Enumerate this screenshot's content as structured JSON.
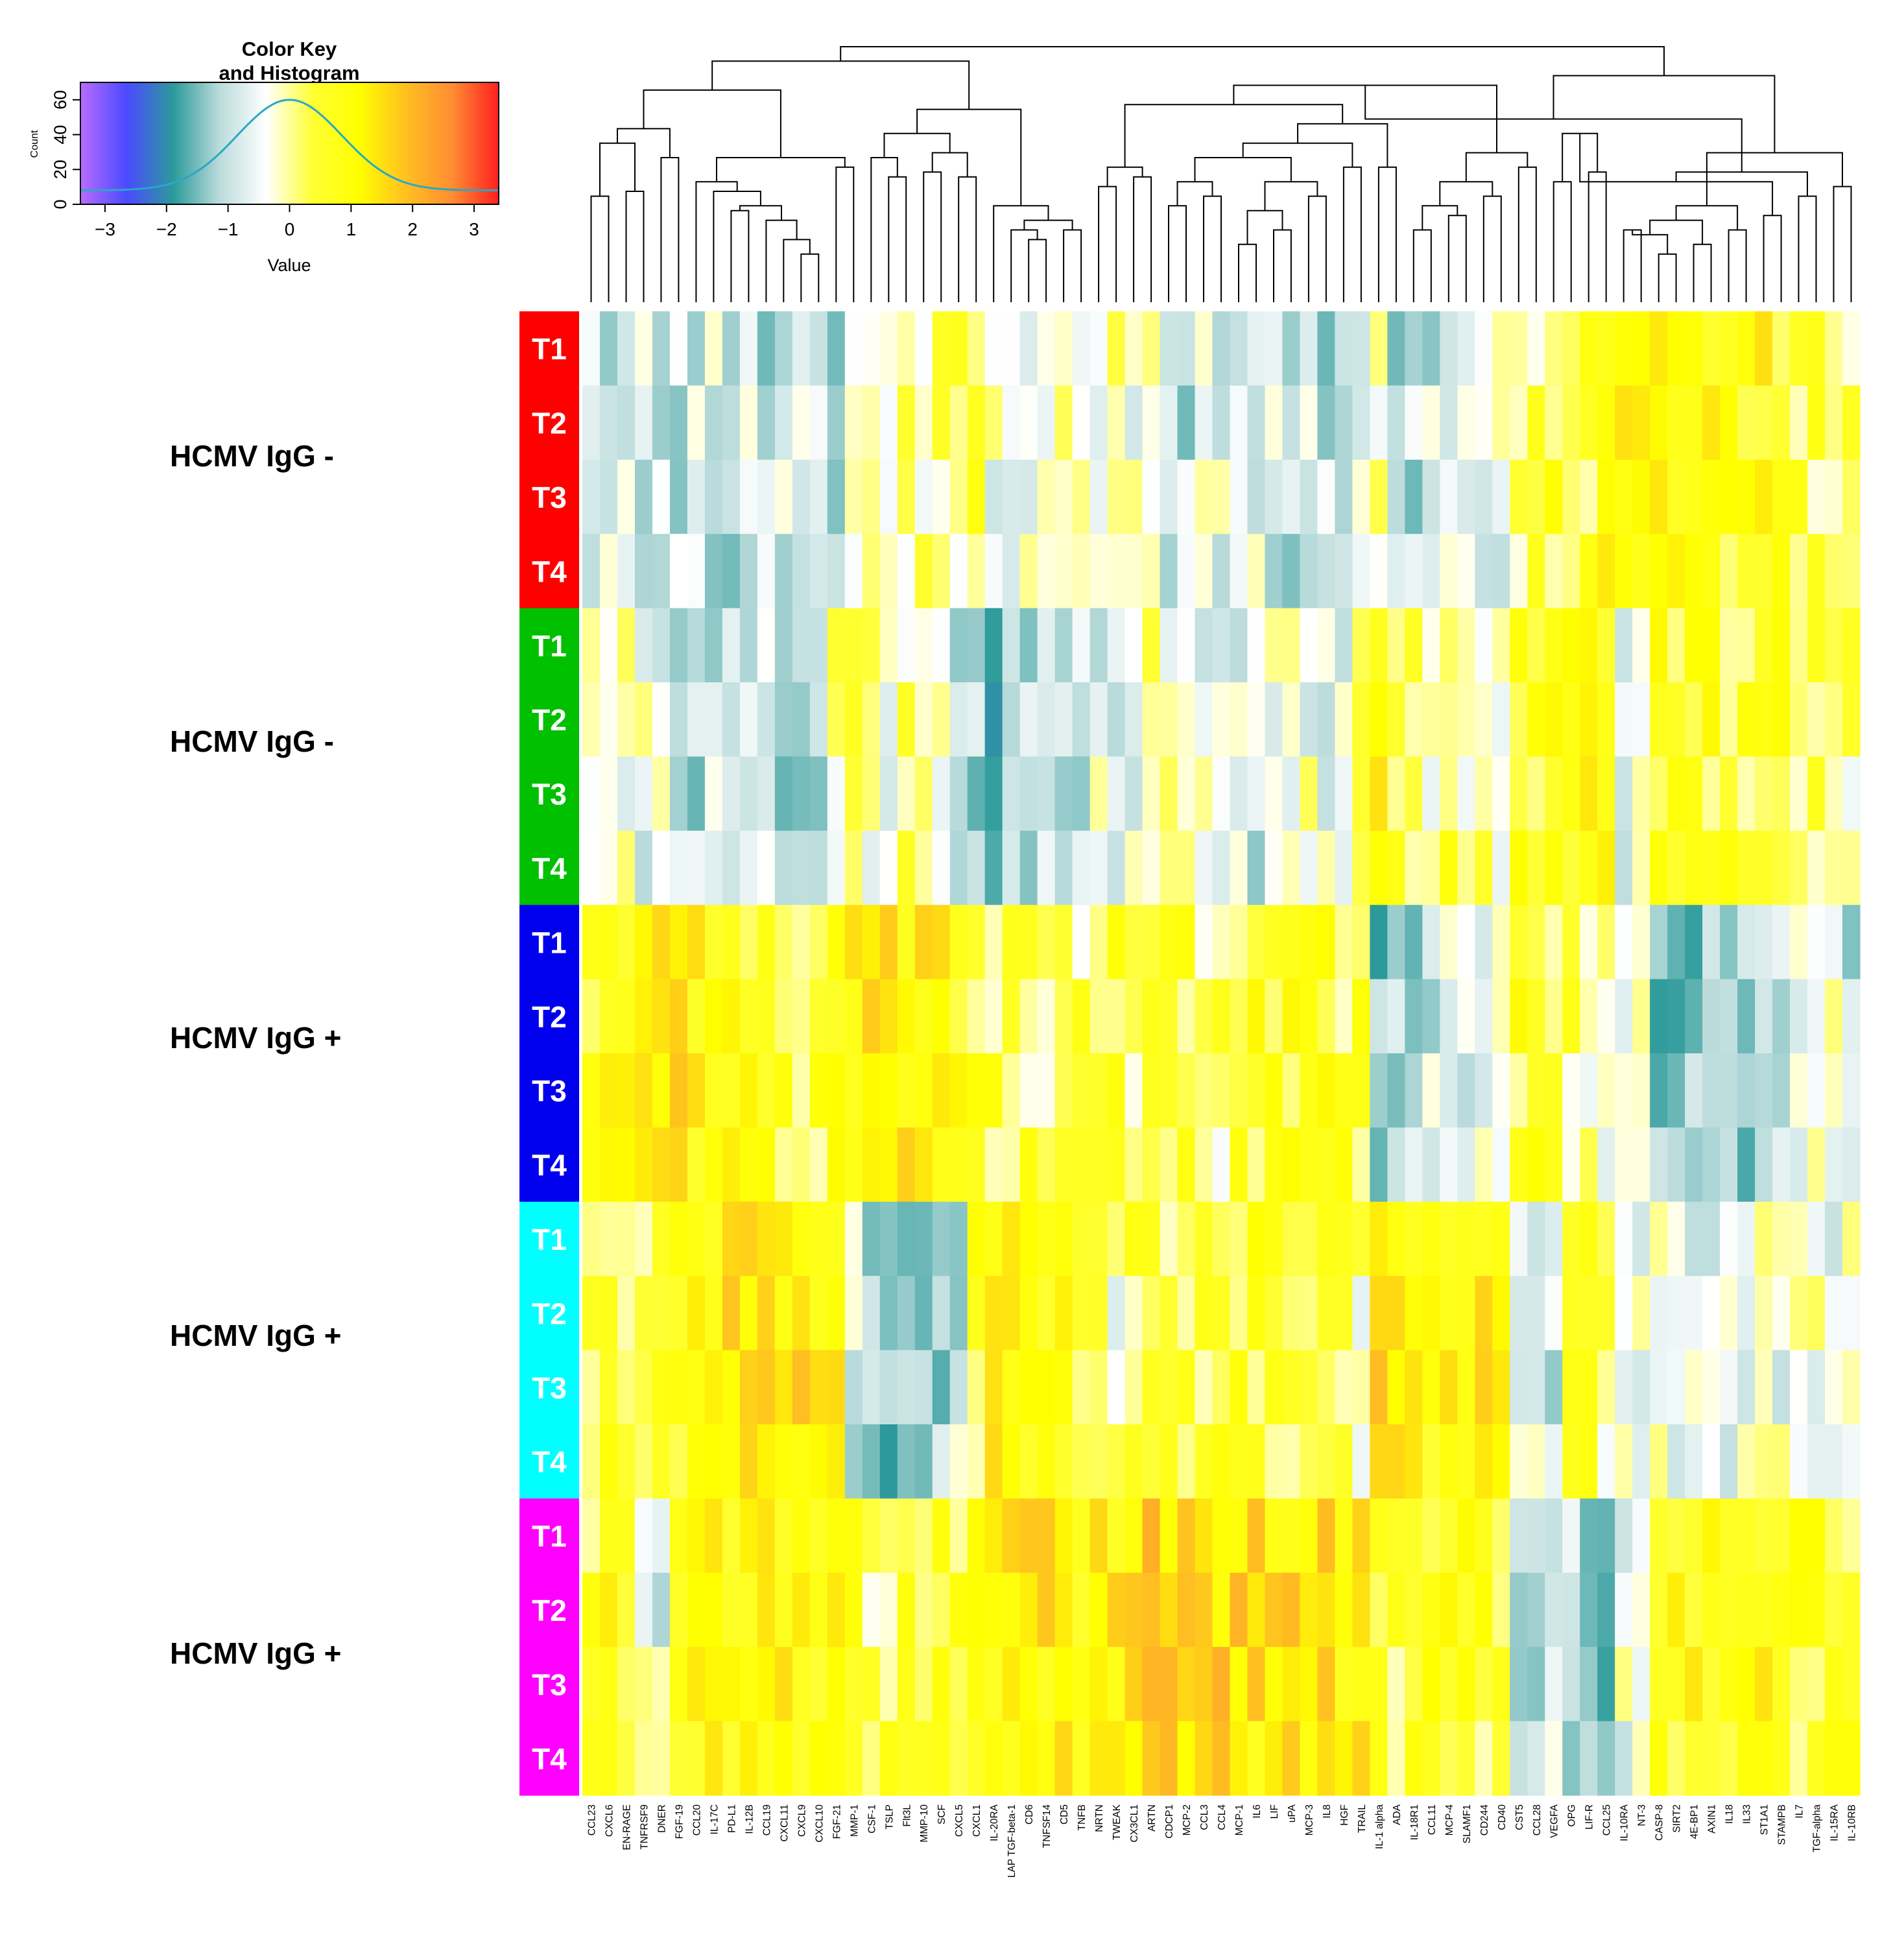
{
  "chart_data": {
    "type": "heatmap",
    "color_key": {
      "title_line1": "Color Key",
      "title_line2": "and Histogram",
      "x_label": "Value",
      "y_label": "Count",
      "x_ticks": [
        "−3",
        "−2",
        "−1",
        "0",
        "1",
        "2",
        "3"
      ],
      "x_tick_values": [
        -3,
        -2,
        -1,
        0,
        1,
        2,
        3
      ],
      "x_range": [
        -3.4,
        3.4
      ],
      "y_ticks": [
        "0",
        "20",
        "40",
        "60"
      ],
      "y_tick_values": [
        0,
        20,
        40,
        60
      ],
      "y_range": [
        0,
        70
      ],
      "colors": [
        "#b76cff",
        "#4a4aff",
        "#2c9a9a",
        "#bcdcdc",
        "#ffffff",
        "#ffff33",
        "#ffff00",
        "#ffc020",
        "#ff8c33",
        "#ff2020"
      ]
    },
    "columns": [
      "CCL23",
      "CXCL6",
      "EN-RAGE",
      "TNFRSF9",
      "DNER",
      "FGF-19",
      "CCL20",
      "IL-17C",
      "PD-L1",
      "IL-12B",
      "CCL19",
      "CXCL11",
      "CXCL9",
      "CXCL10",
      "FGF-21",
      "MMP-1",
      "CSF-1",
      "TSLP",
      "Flt3L",
      "MMP-10",
      "SCF",
      "CXCL5",
      "CXCL1",
      "IL-20RA",
      "LAP TGF-beta-1",
      "CD6",
      "TNFSF14",
      "CD5",
      "TNFB",
      "NRTN",
      "TWEAK",
      "CX3CL1",
      "ARTN",
      "CDCP1",
      "MCP-2",
      "CCL3",
      "CCL4",
      "MCP-1",
      "IL6",
      "LIF",
      "uPA",
      "MCP-3",
      "IL8",
      "HGF",
      "TRAIL",
      "IL-1 alpha",
      "ADA",
      "IL-18R1",
      "CCL11",
      "MCP-4",
      "SLAMF1",
      "CD244",
      "CD40",
      "CST5",
      "CCL28",
      "VEGFA",
      "OPG",
      "LIF-R",
      "CCL25",
      "IL-10RA",
      "NT-3",
      "CASP-8",
      "SIRT2",
      "4E-BP1",
      "AXIN1",
      "IL18",
      "IL33",
      "ST1A1",
      "STAMPB",
      "IL7",
      "TGF-alpha",
      "IL-15RA",
      "IL-10RB"
    ],
    "groups": [
      {
        "label": "HCMV IgG -",
        "color": "#ff0000"
      },
      {
        "label": "HCMV IgG -",
        "color": "#00c000"
      },
      {
        "label": "HCMV IgG +",
        "color": "#0000ee"
      },
      {
        "label": "HCMV IgG +",
        "color": "#00ffff"
      },
      {
        "label": "HCMV IgG +",
        "color": "#ff00ff"
      }
    ],
    "timepoints": [
      "T1",
      "T2",
      "T3",
      "T4"
    ],
    "group_profiles": [
      [
        -0.8,
        -0.8,
        -0.8,
        -0.7,
        -0.8,
        -0.8,
        -0.8,
        -0.8,
        -1.0,
        -0.9,
        -0.9,
        -0.9,
        -0.9,
        -1.0,
        -1.0,
        -0.2,
        -0.5,
        -0.2,
        0.0,
        0.1,
        0.2,
        0.2,
        0.3,
        -0.4,
        -0.5,
        -0.5,
        -0.4,
        -0.2,
        -0.5,
        -0.2,
        -0.3,
        -0.5,
        0.0,
        -0.9,
        -0.9,
        -0.6,
        -0.6,
        -0.6,
        -0.7,
        -0.9,
        -0.9,
        -0.8,
        -1.0,
        -1.0,
        -0.6,
        -0.1,
        -0.9,
        -0.9,
        -0.8,
        -0.6,
        -0.8,
        -0.5,
        -0.5,
        0.2,
        0.3,
        0.5,
        0.3,
        0.5,
        1.0,
        1.5,
        1.3,
        1.0,
        1.0,
        1.0,
        1.0,
        0.6,
        0.8,
        0.9,
        0.6,
        0.3,
        0.2,
        0.4,
        0.1
      ],
      [
        -0.4,
        -0.4,
        -0.3,
        -0.5,
        -0.6,
        -0.8,
        -1.0,
        -0.8,
        -0.8,
        -0.9,
        -1.0,
        -1.0,
        -1.0,
        -1.0,
        0.1,
        0.4,
        -0.3,
        -0.3,
        0.1,
        0.3,
        -0.5,
        -0.8,
        -1.2,
        -1.4,
        -0.6,
        -0.9,
        -1.0,
        -0.9,
        -0.9,
        -0.6,
        -0.5,
        -0.6,
        -0.2,
        -0.3,
        -0.4,
        -0.6,
        -0.5,
        -0.8,
        -0.8,
        -0.6,
        -0.5,
        -0.4,
        -0.6,
        -0.6,
        0.3,
        1.0,
        0.2,
        0.2,
        -0.4,
        0.4,
        -0.2,
        0.1,
        0.0,
        0.5,
        0.6,
        0.7,
        0.9,
        0.8,
        1.0,
        -0.6,
        -0.4,
        0.6,
        0.6,
        0.7,
        0.6,
        0.5,
        0.5,
        0.6,
        0.6,
        0.4,
        0.2,
        0.2,
        0.0
      ],
      [
        0.8,
        0.8,
        1.0,
        1.2,
        1.0,
        1.4,
        1.0,
        1.0,
        0.9,
        0.8,
        0.7,
        0.6,
        0.5,
        0.5,
        1.0,
        1.0,
        1.2,
        1.2,
        1.2,
        1.2,
        1.3,
        0.8,
        0.6,
        0.4,
        0.4,
        0.3,
        0.3,
        0.3,
        0.2,
        0.2,
        0.4,
        0.3,
        0.4,
        0.5,
        0.5,
        0.2,
        0.1,
        0.4,
        0.6,
        0.6,
        0.6,
        0.6,
        0.6,
        0.4,
        0.5,
        -1.3,
        -1.0,
        -1.2,
        -0.9,
        -0.8,
        -0.7,
        -0.5,
        -0.4,
        0.6,
        0.7,
        0.2,
        0.3,
        -0.3,
        -0.2,
        -0.4,
        -0.5,
        -1.3,
        -1.4,
        -1.5,
        -1.5,
        -1.4,
        -1.2,
        -1.0,
        -1.1,
        -0.6,
        -0.4,
        -0.4,
        -0.8
      ],
      [
        0.2,
        0.4,
        0.5,
        0.5,
        0.6,
        0.5,
        0.8,
        1.1,
        1.2,
        1.3,
        1.3,
        1.3,
        1.3,
        1.3,
        1.0,
        -0.8,
        -1.5,
        -1.4,
        -1.6,
        -1.2,
        -1.2,
        -0.8,
        0.5,
        1.0,
        1.0,
        1.0,
        1.0,
        0.8,
        0.6,
        0.5,
        -0.3,
        0.4,
        0.6,
        0.4,
        0.4,
        0.4,
        0.4,
        0.5,
        0.5,
        0.5,
        0.4,
        0.3,
        0.3,
        0.2,
        -0.2,
        1.3,
        1.0,
        1.0,
        1.0,
        1.2,
        1.2,
        1.2,
        1.3,
        -0.7,
        -0.6,
        -0.8,
        0.3,
        0.3,
        0.2,
        -0.4,
        -0.4,
        -0.5,
        -0.5,
        -0.6,
        -0.6,
        -0.5,
        -0.5,
        -0.5,
        -0.5,
        -0.5,
        -0.4,
        -0.4,
        -0.5
      ],
      [
        0.3,
        0.8,
        0.8,
        -0.4,
        -0.6,
        0.3,
        0.8,
        0.8,
        0.9,
        1.0,
        1.1,
        1.1,
        1.1,
        1.0,
        0.8,
        0.5,
        0.3,
        0.3,
        0.6,
        0.6,
        0.6,
        0.6,
        0.8,
        0.8,
        1.2,
        1.2,
        1.2,
        1.0,
        0.9,
        1.0,
        1.2,
        1.5,
        1.8,
        1.5,
        1.4,
        1.4,
        1.5,
        1.5,
        1.3,
        1.3,
        1.4,
        1.3,
        1.3,
        1.0,
        1.2,
        0.3,
        0.3,
        0.5,
        0.6,
        0.6,
        0.6,
        0.5,
        0.6,
        -1.2,
        -1.3,
        -0.9,
        -0.8,
        -1.4,
        -1.4,
        -0.4,
        -0.3,
        0.8,
        0.8,
        0.8,
        0.8,
        0.8,
        0.8,
        0.9,
        0.8,
        0.6,
        0.6,
        0.6,
        0.5
      ]
    ],
    "column_tree": {
      "leaf_heights": [
        0.3,
        0.2,
        0.4,
        0.3,
        0.4,
        0.35,
        0.32,
        0.28,
        0.25,
        0.24,
        0.28,
        0.26,
        0.14,
        0.1,
        0.3,
        0.24,
        0.28,
        0.26,
        0.28,
        0.3,
        0.32,
        0.29,
        0.32,
        0.32,
        0.26,
        0.14,
        0.16,
        0.18,
        0.27,
        0.38,
        0.36,
        0.4,
        0.47,
        0.2,
        0.24,
        0.2,
        0.23,
        0.16,
        0.16,
        0.18,
        0.2,
        0.3,
        0.32,
        0.38,
        0.48,
        0.48,
        0.15,
        0.15,
        0.24,
        0.24,
        0.3,
        0.22,
        0.2,
        0.34,
        0.34,
        0.3,
        0.34,
        0.36,
        0.34,
        0.15,
        0.15,
        0.11,
        0.11,
        0.13,
        0.13,
        0.17,
        0.17,
        0.18,
        0.18,
        0.34,
        0.34,
        0.37,
        0.37
      ],
      "merges": [
        [
          [
            12,
            13
          ],
          0.2
        ],
        [
          [
            11,
            "m0"
          ],
          0.26
        ],
        [
          [
            10,
            "m1"
          ],
          0.34
        ],
        [
          [
            8,
            9
          ],
          0.38
        ],
        [
          [
            "m3",
            "m2"
          ],
          0.4
        ],
        [
          [
            7,
            "m4"
          ],
          0.46
        ],
        [
          [
            6,
            "m5"
          ],
          0.5
        ],
        [
          [
            14,
            15
          ],
          0.56
        ],
        [
          [
            "m6",
            "m7"
          ],
          0.6
        ],
        [
          [
            0,
            1
          ],
          0.44
        ],
        [
          [
            2,
            3
          ],
          0.46
        ],
        [
          [
            4,
            5
          ],
          0.6
        ],
        [
          [
            "m9",
            "m10"
          ],
          0.66
        ],
        [
          [
            "m11",
            "m12"
          ],
          0.72
        ],
        [
          [
            "m13",
            "m8"
          ],
          0.88
        ],
        [
          [
            17,
            18
          ],
          0.52
        ],
        [
          [
            16,
            "m15"
          ],
          0.6
        ],
        [
          [
            19,
            20
          ],
          0.54
        ],
        [
          [
            21,
            22
          ],
          0.52
        ],
        [
          [
            "m17",
            "m18"
          ],
          0.62
        ],
        [
          [
            "m16",
            "m19"
          ],
          0.7
        ],
        [
          [
            25,
            26
          ],
          0.26
        ],
        [
          [
            24,
            "m21"
          ],
          0.3
        ],
        [
          [
            27,
            28
          ],
          0.3
        ],
        [
          [
            "m22",
            "m23"
          ],
          0.34
        ],
        [
          [
            23,
            "m24"
          ],
          0.4
        ],
        [
          [
            "m25",
            "m20"
          ],
          0.8
        ],
        [
          [
            "m14",
            "m26"
          ],
          1.0
        ],
        [
          [
            29,
            30
          ],
          0.48
        ],
        [
          [
            31,
            32
          ],
          0.52
        ],
        [
          [
            "m28",
            "m29"
          ],
          0.56
        ],
        [
          [
            33,
            34
          ],
          0.4
        ],
        [
          [
            35,
            36
          ],
          0.44
        ],
        [
          [
            "m31",
            "m32"
          ],
          0.5
        ],
        [
          [
            37,
            38
          ],
          0.24
        ],
        [
          [
            39,
            40
          ],
          0.3
        ],
        [
          [
            "m34",
            "m35"
          ],
          0.38
        ],
        [
          [
            41,
            42
          ],
          0.44
        ],
        [
          [
            "m36",
            "m37"
          ],
          0.5
        ],
        [
          [
            "m33",
            "m38"
          ],
          0.6
        ],
        [
          [
            43,
            44
          ],
          0.56
        ],
        [
          [
            "m39",
            "m40"
          ],
          0.66
        ],
        [
          [
            45,
            46
          ],
          0.56
        ],
        [
          [
            "m41",
            "m42"
          ],
          0.74
        ],
        [
          [
            "m30",
            "m43"
          ],
          0.82
        ],
        [
          [
            47,
            48
          ],
          0.3
        ],
        [
          [
            49,
            50
          ],
          0.36
        ],
        [
          [
            "m45",
            "m46"
          ],
          0.4
        ],
        [
          [
            51,
            52
          ],
          0.44
        ],
        [
          [
            "m47",
            "m48"
          ],
          0.5
        ],
        [
          [
            53,
            54
          ],
          0.56
        ],
        [
          [
            "m49",
            "m50"
          ],
          0.62
        ],
        [
          [
            "m44",
            "m51"
          ],
          0.9
        ],
        [
          [
            55,
            56
          ],
          0.5
        ],
        [
          [
            57,
            58
          ],
          0.54
        ],
        [
          [
            "m53",
            "m54"
          ],
          0.7
        ],
        [
          [
            59,
            60
          ],
          0.3
        ],
        [
          [
            61,
            62
          ],
          0.2
        ],
        [
          [
            63,
            64
          ],
          0.24
        ],
        [
          [
            "m56",
            "m57"
          ],
          0.28
        ],
        [
          [
            65,
            66
          ],
          0.3
        ],
        [
          [
            "m58",
            "m59"
          ],
          0.34
        ],
        [
          [
            67,
            68
          ],
          0.36
        ],
        [
          [
            "m60",
            "m61"
          ],
          0.4
        ],
        [
          [
            "m55",
            "m62"
          ],
          0.5
        ],
        [
          [
            69,
            70
          ],
          0.44
        ],
        [
          [
            71,
            72
          ],
          0.48
        ],
        [
          [
            "m64",
            "m65"
          ],
          0.54
        ],
        [
          [
            "m63",
            "m66"
          ],
          0.62
        ],
        [
          [
            "m52",
            "m67"
          ],
          0.76
        ],
        [
          [
            "m68",
            "m69"
          ],
          0.94
        ],
        [
          [
            "m27",
            "m70"
          ],
          1.06
        ]
      ]
    }
  }
}
